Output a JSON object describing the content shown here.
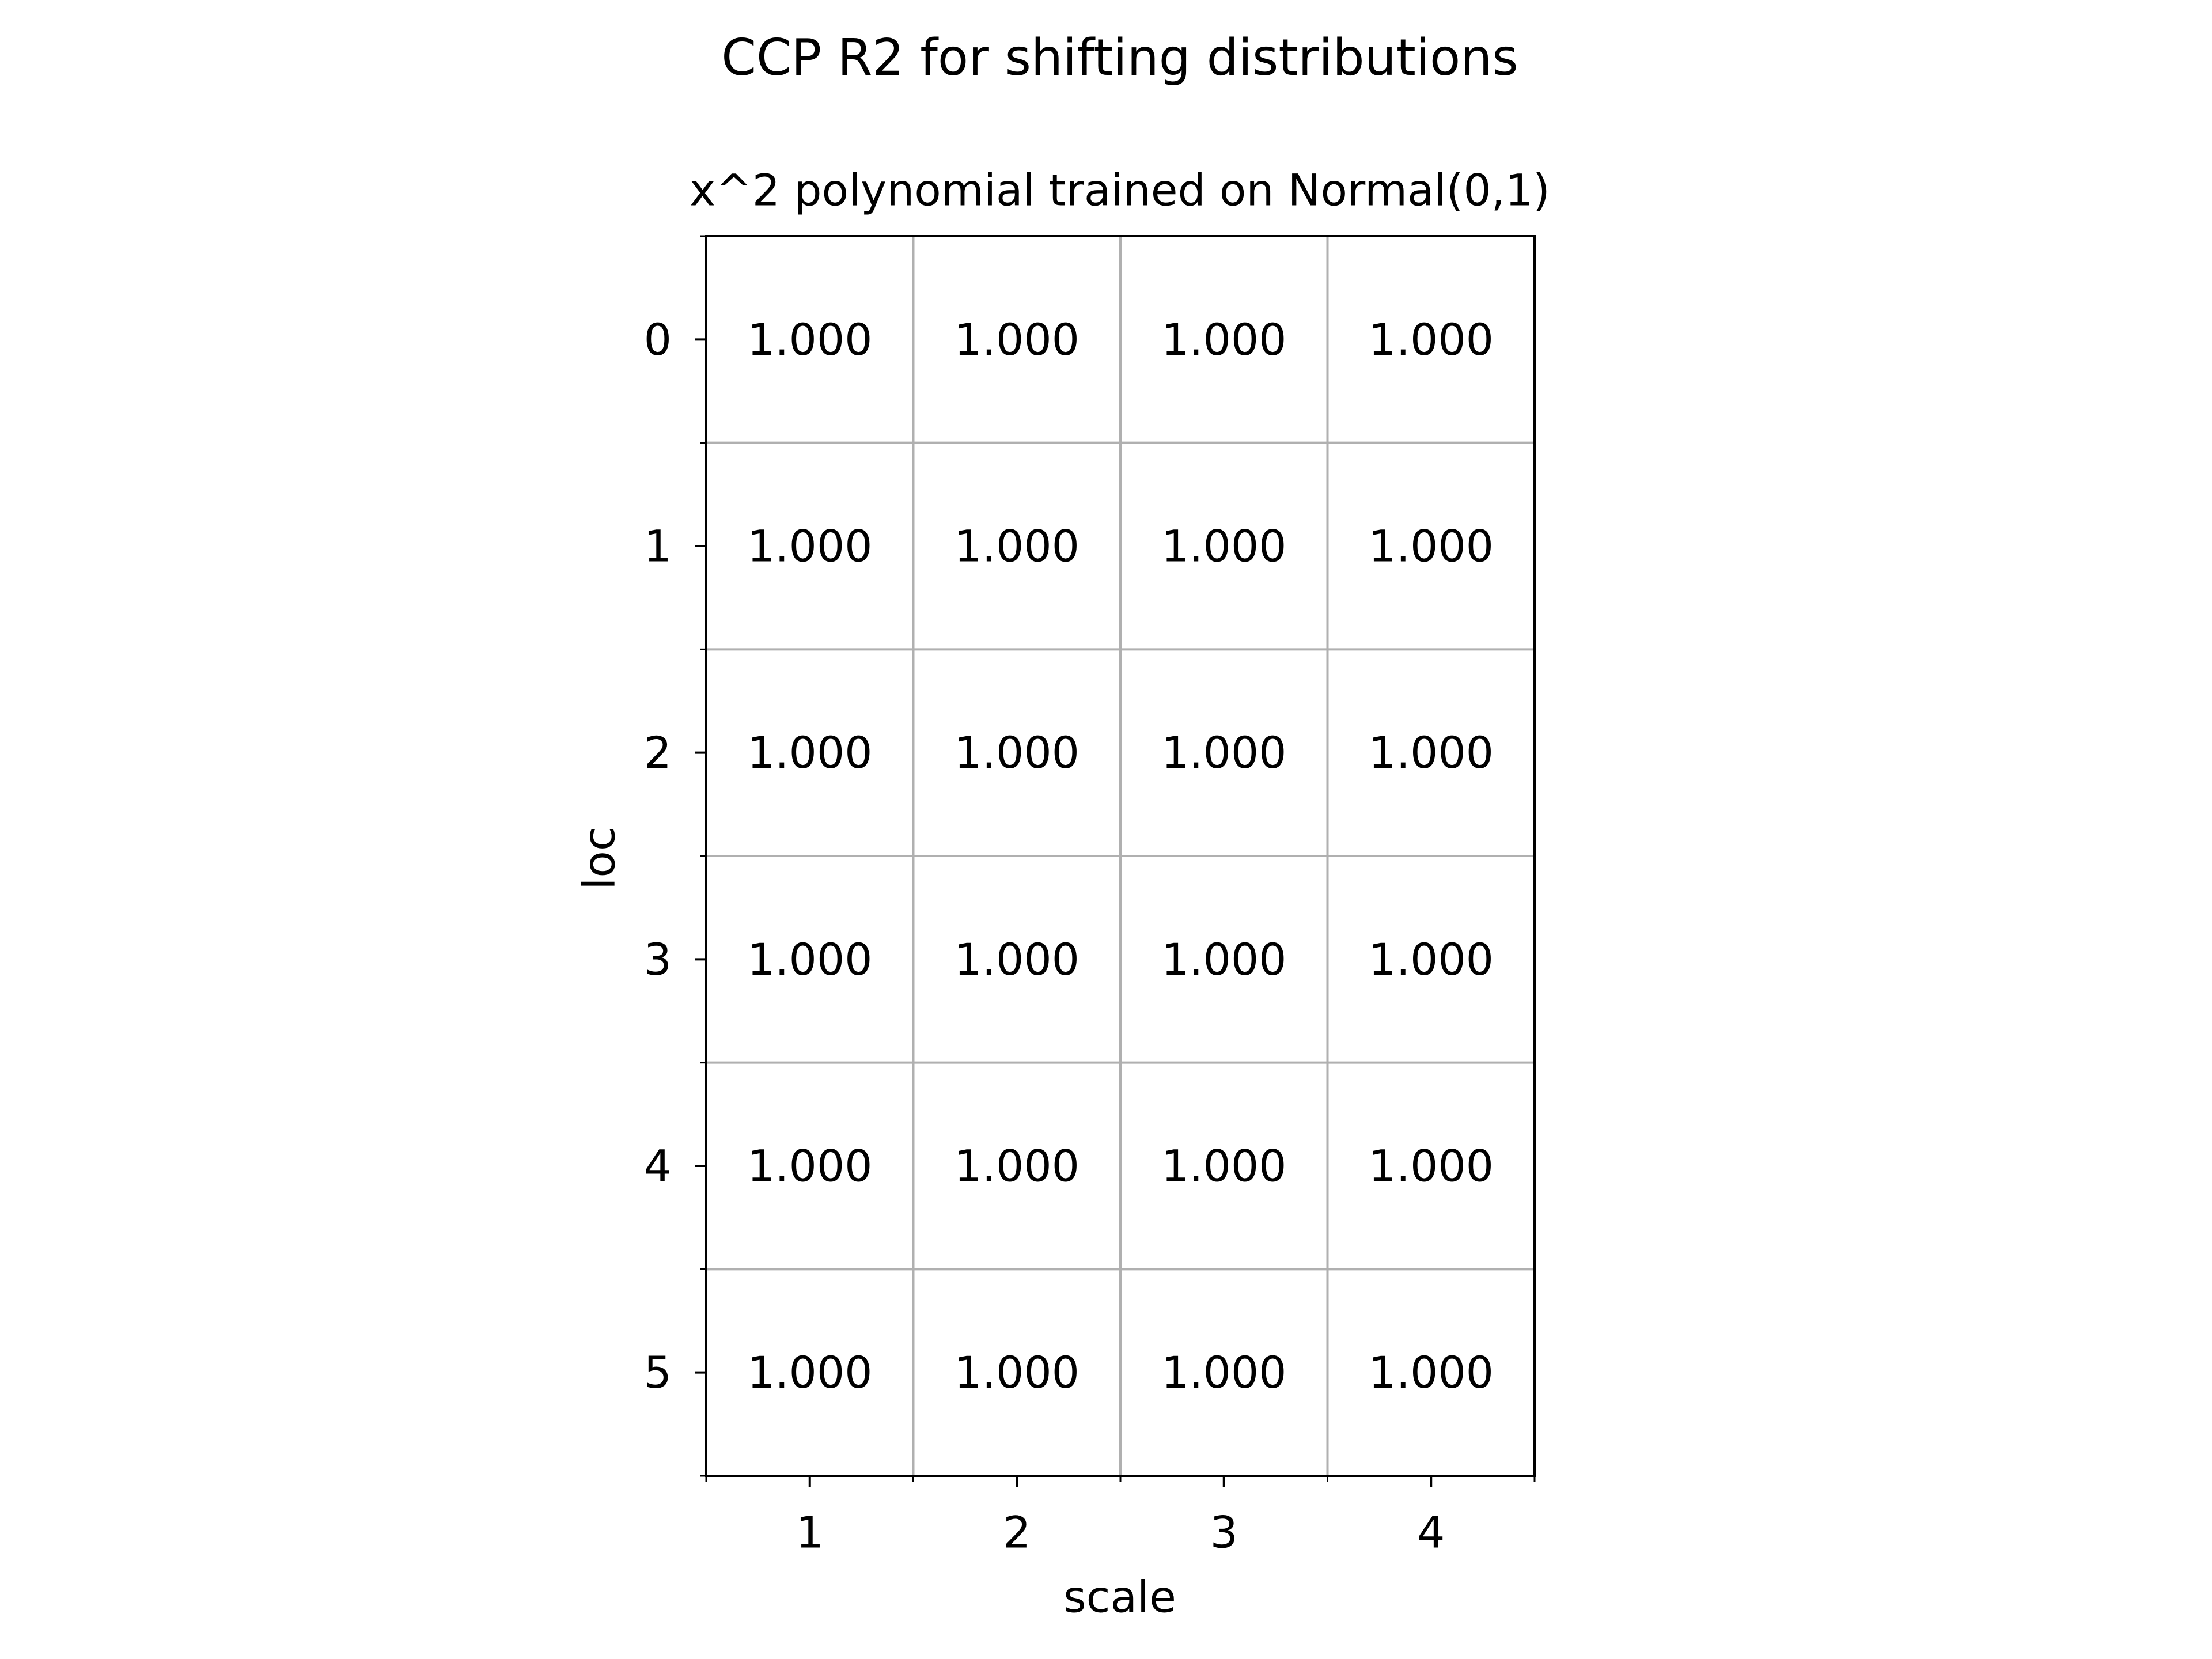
{
  "figure": {
    "suptitle": "CCP R2 for shifting distributions"
  },
  "chart_data": {
    "type": "table",
    "title": "x^2 polynomial trained on Normal(0,1)",
    "xlabel": "scale",
    "ylabel": "loc",
    "x": [
      1,
      2,
      3,
      4
    ],
    "y": [
      0,
      1,
      2,
      3,
      4,
      5
    ],
    "xlim": [
      0.5,
      4.5
    ],
    "ylim": [
      5.5,
      -0.5
    ],
    "x_tick_labels": [
      "1",
      "2",
      "3",
      "4"
    ],
    "y_tick_labels": [
      "0",
      "1",
      "2",
      "3",
      "4",
      "5"
    ],
    "grid": true,
    "value_format": "3 decimals",
    "values": [
      [
        "1.000",
        "1.000",
        "1.000",
        "1.000"
      ],
      [
        "1.000",
        "1.000",
        "1.000",
        "1.000"
      ],
      [
        "1.000",
        "1.000",
        "1.000",
        "1.000"
      ],
      [
        "1.000",
        "1.000",
        "1.000",
        "1.000"
      ],
      [
        "1.000",
        "1.000",
        "1.000",
        "1.000"
      ],
      [
        "1.000",
        "1.000",
        "1.000",
        "1.000"
      ]
    ],
    "colors": {
      "grid": "#b0b0b0",
      "axis": "#000000",
      "background": "#ffffff",
      "text": "#000000"
    }
  }
}
